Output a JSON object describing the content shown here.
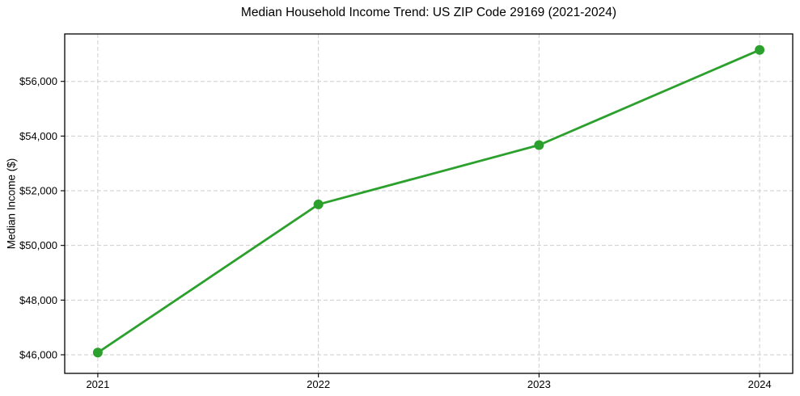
{
  "figure": {
    "kind": "line-chart-figure",
    "background": "#ffffff"
  },
  "chart_data": {
    "type": "line",
    "title": "Median Household Income Trend: US ZIP Code 29169 (2021-2024)",
    "xlabel": "",
    "ylabel": "Median Income ($)",
    "x": [
      2021,
      2022,
      2023,
      2024
    ],
    "series": [
      {
        "name": "Median Household Income",
        "values": [
          46080,
          51500,
          53670,
          57150
        ]
      }
    ],
    "x_tick_labels": [
      "2021",
      "2022",
      "2023",
      "2024"
    ],
    "y_ticks": [
      46000,
      48000,
      50000,
      52000,
      54000,
      56000
    ],
    "y_tick_labels": [
      "$46,000",
      "$48,000",
      "$50,000",
      "$52,000",
      "$54,000",
      "$56,000"
    ],
    "xlim": [
      2020.85,
      2024.15
    ],
    "ylim": [
      45320,
      57735
    ],
    "grid": true,
    "grid_style": "dashed",
    "legend": "none",
    "marker": "circle",
    "colors": {
      "line": "#2ca02c",
      "marker": "#2ca02c",
      "grid": "#cdcdcd",
      "spine": "#000000",
      "text": "#000000"
    }
  }
}
